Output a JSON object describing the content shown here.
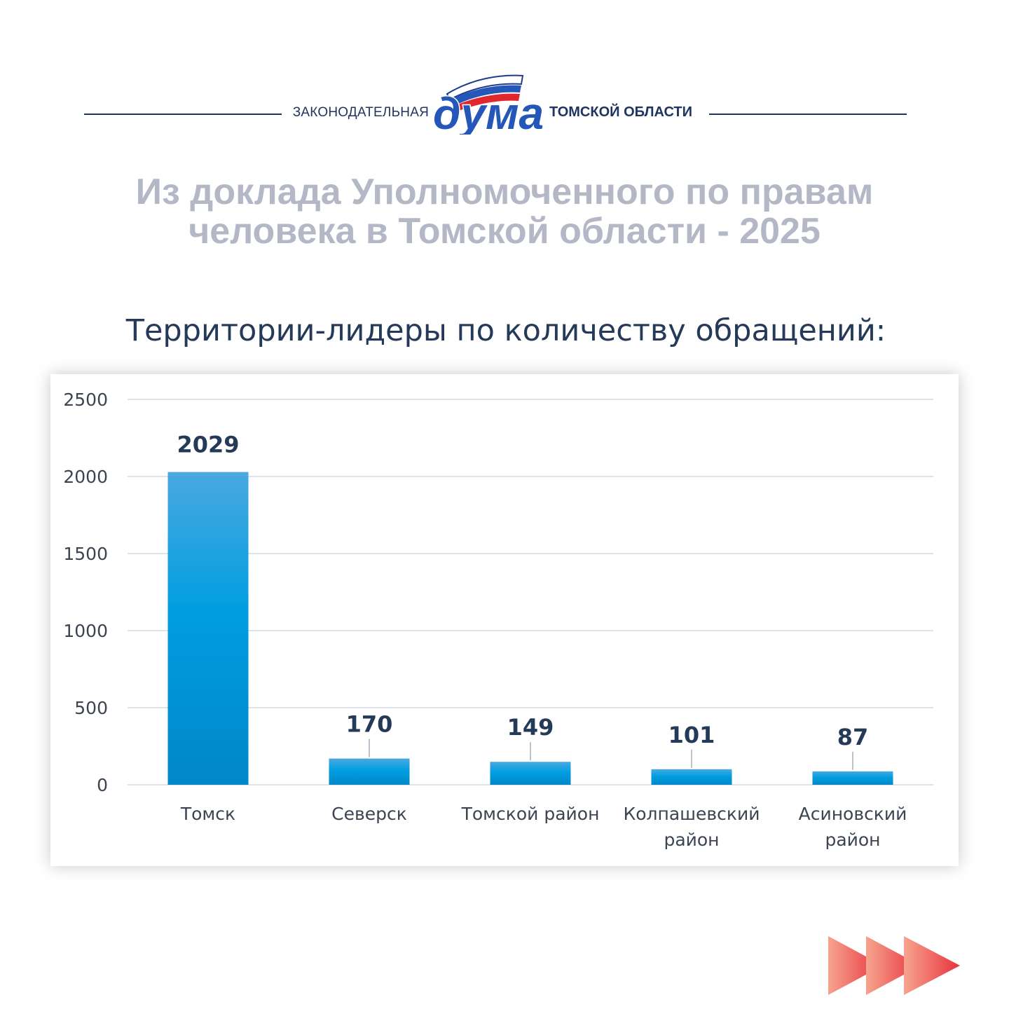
{
  "header": {
    "org_prefix": "ЗАКОНОДАТЕЛЬНАЯ",
    "logo_word": "дума",
    "org_suffix": "ТОМСКОЙ ОБЛАСТИ"
  },
  "report_title": {
    "line1": "Из доклада Уполномоченного по правам",
    "line2": "человека в Томской области - 2025"
  },
  "chart_heading": "Территории-лидеры по количеству обращений:",
  "colors": {
    "bar_top": "#4aa8e0",
    "bar_mid": "#009ee0",
    "bar_bottom": "#0087c8",
    "title_gray": "#b4b8c6",
    "navy": "#243a58",
    "arrow_red": "#e8323c"
  },
  "chart_data": {
    "type": "bar",
    "title": "",
    "xlabel": "",
    "ylabel": "",
    "categories": [
      [
        "Томск"
      ],
      [
        "Северск"
      ],
      [
        "Томской район"
      ],
      [
        "Колпашевский",
        "район"
      ],
      [
        "Асиновский",
        "район"
      ]
    ],
    "values": [
      2029,
      170,
      149,
      101,
      87
    ],
    "data_labels": [
      "2029",
      "170",
      "149",
      "101",
      "87"
    ],
    "ylim": [
      0,
      2500
    ],
    "yticks": [
      0,
      500,
      1000,
      1500,
      2000,
      2500
    ],
    "grid": true,
    "legend": "none"
  }
}
